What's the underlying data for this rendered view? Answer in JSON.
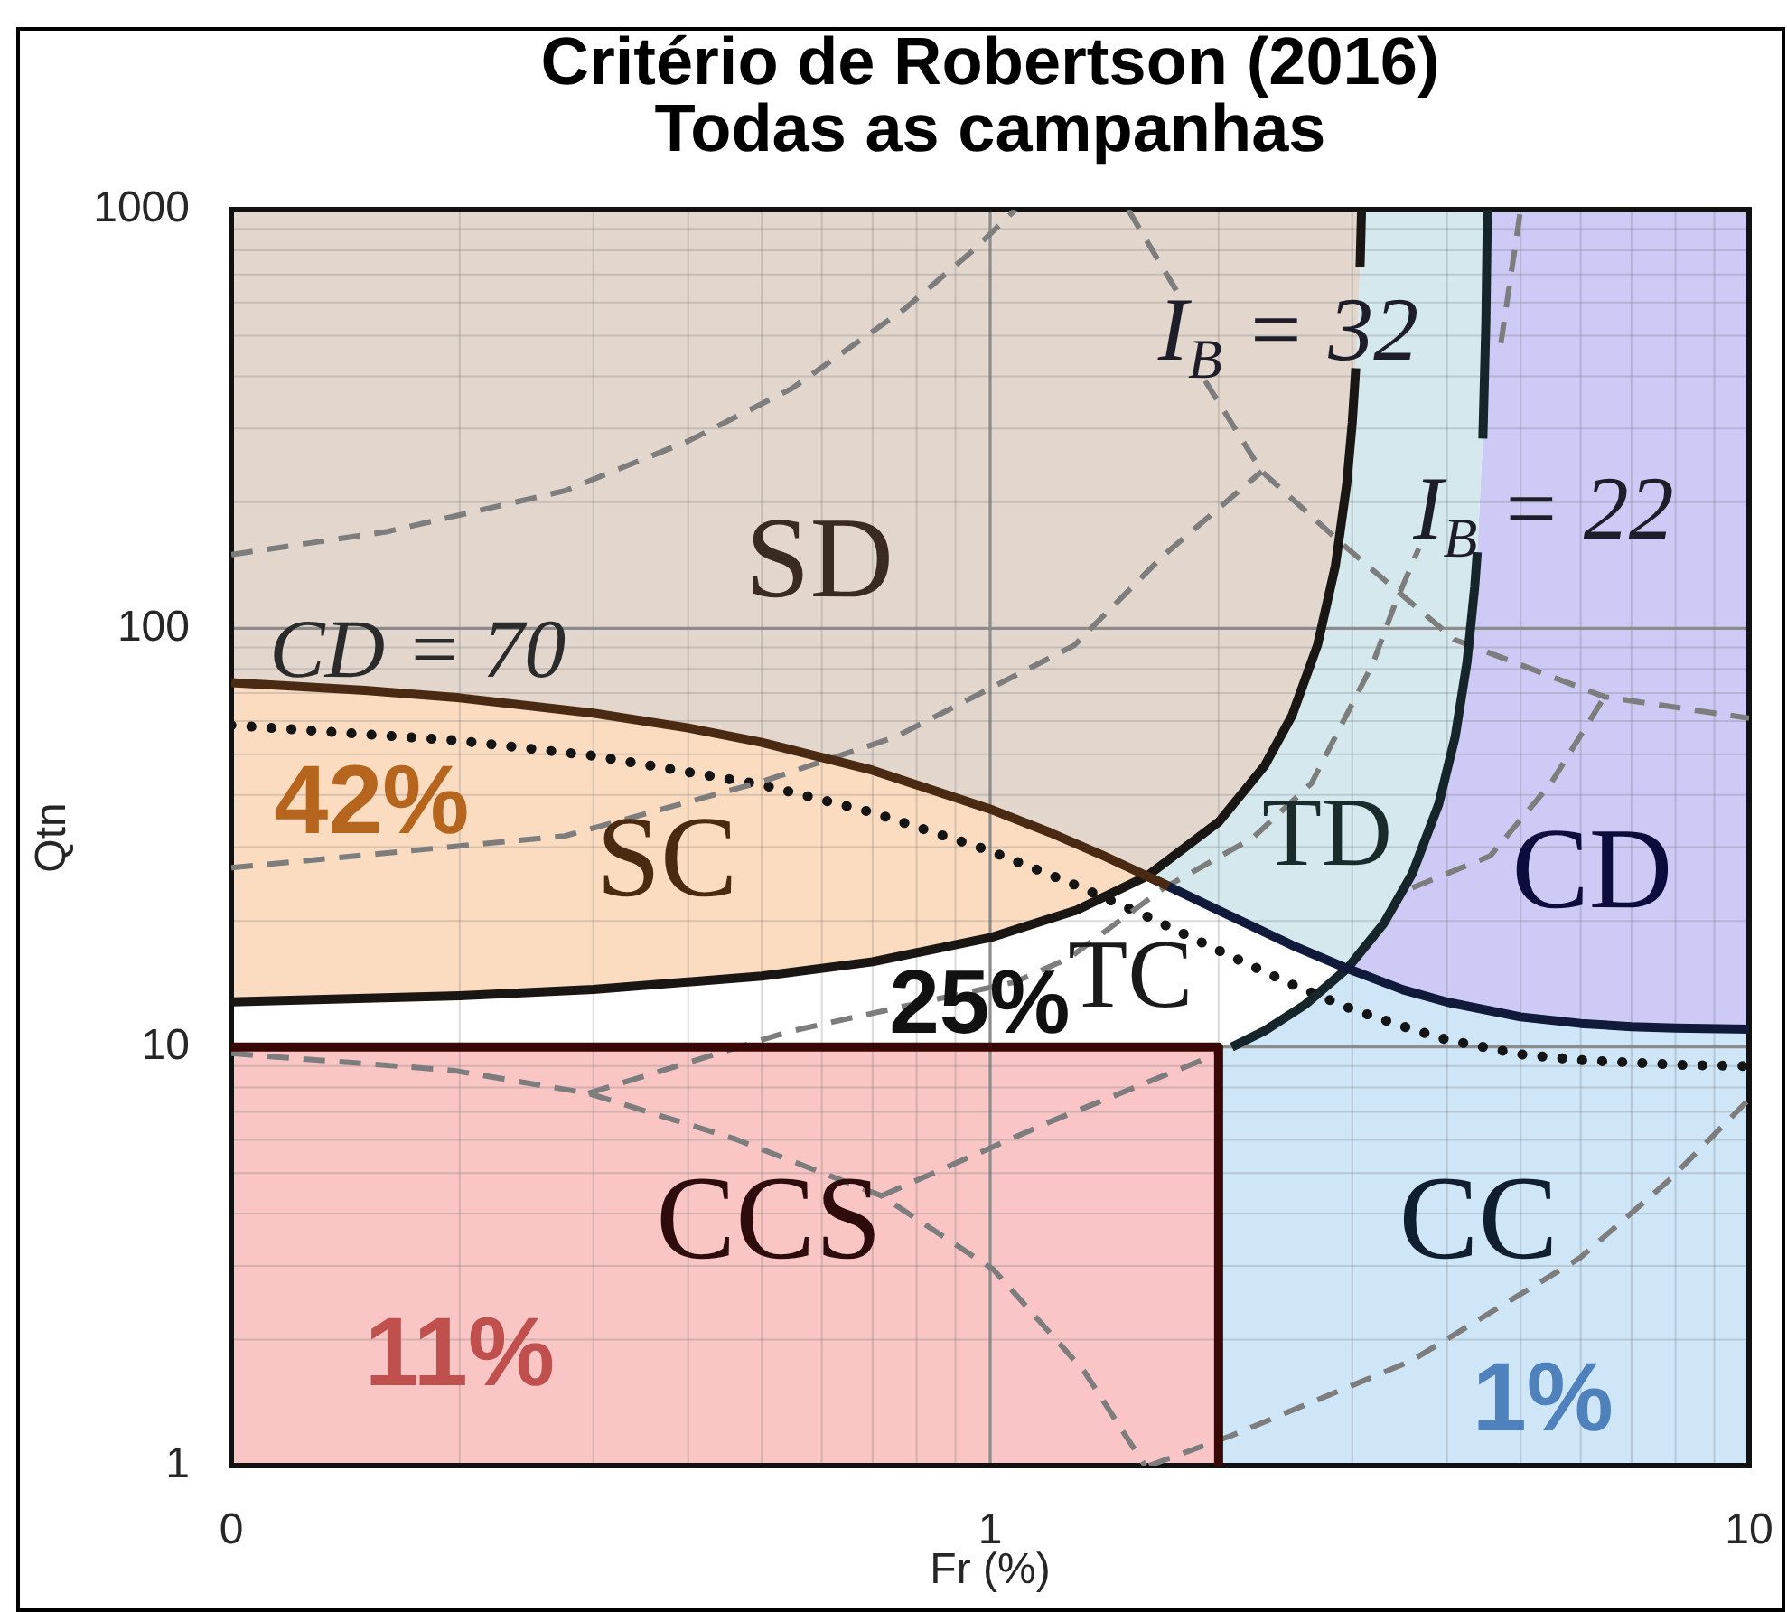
{
  "chart_data": {
    "type": "line",
    "title": "Critério de Robertson (2016)",
    "subtitle": "Todas as campanhas",
    "xlabel": "Fr (%)",
    "ylabel": "Qtn",
    "log": "xy",
    "xlim": [
      0.1,
      10
    ],
    "ylim": [
      1,
      1000
    ],
    "xticks": [
      {
        "value": 0.1,
        "label": "0"
      },
      {
        "value": 0.2,
        "label": null
      },
      {
        "value": 0.3,
        "label": null
      },
      {
        "value": 0.4,
        "label": null
      },
      {
        "value": 0.5,
        "label": null
      },
      {
        "value": 0.6,
        "label": null
      },
      {
        "value": 0.7,
        "label": null
      },
      {
        "value": 0.8,
        "label": null
      },
      {
        "value": 0.9,
        "label": null
      },
      1,
      {
        "value": 2,
        "label": null
      },
      {
        "value": 3,
        "label": null
      },
      {
        "value": 4,
        "label": null
      },
      {
        "value": 5,
        "label": null
      },
      {
        "value": 6,
        "label": null
      },
      {
        "value": 7,
        "label": null
      },
      {
        "value": 8,
        "label": null
      },
      {
        "value": 9,
        "label": null
      },
      10
    ],
    "yticks": [
      1,
      {
        "value": 2,
        "label": null
      },
      {
        "value": 3,
        "label": null
      },
      {
        "value": 4,
        "label": null
      },
      {
        "value": 5,
        "label": null
      },
      {
        "value": 6,
        "label": null
      },
      {
        "value": 7,
        "label": null
      },
      {
        "value": 8,
        "label": null
      },
      {
        "value": 9,
        "label": null
      },
      10,
      {
        "value": 20,
        "label": null
      },
      {
        "value": 30,
        "label": null
      },
      {
        "value": 40,
        "label": null
      },
      {
        "value": 50,
        "label": null
      },
      {
        "value": 60,
        "label": null
      },
      {
        "value": 70,
        "label": null
      },
      {
        "value": 80,
        "label": null
      },
      {
        "value": 90,
        "label": null
      },
      100,
      {
        "value": 200,
        "label": null
      },
      {
        "value": 300,
        "label": null
      },
      {
        "value": 400,
        "label": null
      },
      {
        "value": 500,
        "label": null
      },
      {
        "value": 600,
        "label": null
      },
      {
        "value": 700,
        "label": null
      },
      {
        "value": 800,
        "label": null
      },
      {
        "value": 900,
        "label": null
      },
      1000
    ],
    "grid": true,
    "series": [
      {
        "type": "area",
        "color": "#e3d7cd",
        "x": [
          0.1,
          3.086,
          3.0718,
          3.05,
          3.032,
          3.0,
          2.95,
          2.85,
          2.7,
          2.5,
          2.3,
          2.0,
          1.61,
          1.5,
          1.3,
          1.1,
          0.85,
          0.6,
          0.45,
          0.35,
          0.25,
          0.175,
          0.125,
          0.1
        ],
        "values": [
          1000,
          1000,
          728,
          516.7,
          418,
          310,
          221,
          140.9,
          91.2,
          62,
          46.97,
          34.44,
          25.6,
          27.2,
          30.5,
          34.6,
          41.1,
          49.4,
          55.5,
          60.2,
          65.3,
          69.6,
          72.7,
          74.2
        ]
      },
      {
        "type": "area",
        "color": "#fcdcc0",
        "x": [
          0.1,
          0.2,
          0.3,
          0.5,
          0.7,
          1.0,
          1.3,
          1.61,
          1.5,
          1.3,
          1.1,
          0.85,
          0.6,
          0.45,
          0.35,
          0.25,
          0.175,
          0.125,
          0.1
        ],
        "values": [
          12.81,
          13.25,
          13.72,
          14.76,
          15.98,
          18.24,
          21.23,
          25.6,
          27.2,
          30.5,
          34.6,
          41.1,
          49.4,
          55.5,
          60.2,
          65.3,
          69.6,
          72.7,
          74.2
        ]
      },
      {
        "type": "area",
        "color": "#d4e8ed",
        "x": [
          1.61,
          2.0,
          2.3,
          2.5,
          2.7,
          2.85,
          2.95,
          3.0,
          3.032,
          3.05,
          3.0718,
          3.086,
          4.521,
          4.5,
          4.459,
          4.384,
          4.35,
          4.25,
          4.1,
          3.9,
          3.6,
          3.3,
          2.955,
          2.5,
          2.0
        ],
        "values": [
          25.6,
          34.44,
          46.97,
          62,
          91.2,
          140.9,
          221,
          310,
          418,
          516.7,
          728,
          1000,
          1000,
          540,
          284,
          152,
          125.6,
          83.1,
          55.1,
          38.03,
          25.96,
          19.71,
          15.4,
          17.5,
          21.2
        ]
      },
      {
        "type": "area",
        "color": "#cdcaf6",
        "x": [
          2.955,
          3.3,
          3.6,
          3.9,
          4.1,
          4.25,
          4.35,
          4.384,
          4.459,
          4.5,
          4.521,
          10,
          10,
          8,
          7,
          6,
          5,
          4,
          3.5
        ],
        "values": [
          15.4,
          19.71,
          25.96,
          38.03,
          55.1,
          83.1,
          125.6,
          152,
          284,
          540,
          1000,
          1000,
          11.02,
          11.09,
          11.18,
          11.38,
          11.8,
          12.8,
          13.7
        ]
      },
      {
        "type": "area",
        "color": "#cfe6f8",
        "x": [
          2,
          2,
          2.082,
          2.3,
          2.6,
          2.955,
          3.5,
          4,
          5,
          6,
          7,
          8,
          10,
          10
        ],
        "values": [
          1,
          10,
          10,
          10.93,
          12.62,
          15.4,
          13.7,
          12.8,
          11.8,
          11.38,
          11.18,
          11.09,
          11.02,
          1
        ]
      },
      {
        "type": "area",
        "color": "#f9c5c5",
        "x": [
          0.1,
          0.1,
          1,
          1
        ],
        "values": [
          1,
          10,
          10,
          1
        ]
      },
      {
        "type": "area",
        "color": "#f9c5c6",
        "x": [
          1,
          1,
          2,
          2
        ],
        "values": [
          1,
          10,
          10,
          1
        ]
      },
      {
        "color": "#7d7d7d",
        "line_style": "dashed",
        "x": [
          0.1,
          0.16,
          0.275,
          0.4,
          0.548,
          0.771,
          0.95,
          1.08
        ],
        "values": [
          150,
          170,
          213,
          280,
          374,
          579,
          800,
          1000
        ]
      },
      {
        "color": "#7d7d7d",
        "line_style": "dashed",
        "x": [
          0.1,
          0.275,
          0.5,
          0.75,
          1.29,
          1.69,
          2.28
        ],
        "values": [
          26.8,
          31.9,
          43,
          55,
          91,
          149,
          237
        ]
      },
      {
        "color": "#7d7d7d",
        "line_style": "dashed",
        "x": [
          1.52,
          1.76,
          1.84,
          1.92,
          2.28,
          2.91,
          4.09,
          6.45,
          10
        ],
        "values": [
          1000,
          640,
          null,
          390,
          237,
          159,
          94,
          68.6,
          61
        ]
      },
      {
        "color": "#7d7d7d",
        "line_style": "dashed",
        "x": [
          3.6,
          4.56,
          5.48,
          6.45
        ],
        "values": [
          24,
          28.6,
          42.6,
          68.6
        ]
      },
      {
        "color": "#7d7d7d",
        "line_style": "dashed",
        "x": [
          0.2955,
          0.545,
          1.08,
          1.27,
          1.69,
          2.22,
          2.65,
          3.19,
          3.42,
          3.67,
          4.2,
          4.71,
          5.0
        ],
        "values": [
          7.75,
          10.9,
          14.3,
          16.3,
          23.9,
          31.6,
          42.6,
          82,
          115,
          155,
          null,
          480,
          1000
        ]
      },
      {
        "color": "#7d7d7d",
        "line_style": "dashed",
        "x": [
          0.1,
          0.196,
          0.2955,
          0.461,
          0.719,
          1.01,
          1.33,
          1.6
        ],
        "values": [
          9.65,
          8.79,
          7.75,
          6.03,
          4.41,
          2.94,
          1.68,
          1.0
        ]
      },
      {
        "color": "#7d7d7d",
        "line_style": "dashed",
        "x": [
          0.719,
          1.2,
          2.0
        ],
        "values": [
          4.41,
          6.63,
          9.65
        ]
      },
      {
        "color": "#7d7d7d",
        "line_style": "dashed",
        "x": [
          1.62,
          2.08,
          3.59,
          5.98,
          7.88,
          10
        ],
        "values": [
          1.0,
          1.18,
          1.78,
          3.13,
          4.84,
          7.5
        ]
      },
      {
        "color": "#141414",
        "line_style": "dotted",
        "x": [
          0.1,
          0.2,
          0.3,
          0.5,
          0.7,
          1.0,
          1.3,
          1.6,
          2.0,
          2.5,
          3.0,
          3.5,
          4,
          5,
          6,
          8,
          10
        ],
        "values": [
          58.7,
          53.9,
          49.6,
          42.3,
          36.3,
          29.4,
          24.3,
          20.6,
          17.0,
          14.1,
          12.3,
          11.2,
          10.4,
          9.6,
          9.3,
          9.07,
          9.0
        ]
      },
      {
        "color": "#4a2a12",
        "line_style": "solid",
        "x": [
          0.1,
          0.15,
          0.2,
          0.3,
          0.4,
          0.5,
          0.7,
          1.0,
          1.2,
          1.4,
          1.61,
          1.72
        ],
        "values": [
          74.2,
          71.1,
          68.2,
          62.7,
          57.8,
          53.4,
          45.8,
          37.0,
          32.5,
          28.8,
          25.6,
          24.2
        ]
      },
      {
        "color": "#111a3a",
        "line_style": "solid",
        "x": [
          1.61,
          2.0,
          2.5,
          2.955,
          3.5,
          4,
          5,
          6,
          7,
          8,
          10
        ],
        "values": [
          25.6,
          21.2,
          17.5,
          15.4,
          13.7,
          12.8,
          11.8,
          11.38,
          11.18,
          11.09,
          11.02
        ]
      },
      {
        "color": "#1a1614",
        "line_style": "solid",
        "x": [
          0.1,
          0.2,
          0.3,
          0.5,
          0.7,
          1.0,
          1.3,
          1.61,
          2.0,
          2.3,
          2.5,
          2.7,
          2.85,
          2.95,
          3.0,
          3.032,
          3.05,
          3.0718,
          3.086
        ],
        "values": [
          12.81,
          13.25,
          13.72,
          14.76,
          15.98,
          18.24,
          21.23,
          25.6,
          34.44,
          46.97,
          62,
          91.2,
          140.9,
          221,
          310,
          418,
          null,
          728,
          1000
        ]
      },
      {
        "color": "#15252a",
        "line_style": "solid",
        "x": [
          2.082,
          2.3,
          2.6,
          2.955,
          3.3,
          3.6,
          3.9,
          4.1,
          4.25,
          4.35,
          4.384,
          4.42,
          4.459,
          4.5,
          4.521
        ],
        "values": [
          10,
          10.93,
          12.62,
          15.4,
          19.71,
          25.96,
          38.03,
          55.1,
          83.1,
          125.6,
          152,
          null,
          284,
          540,
          1000
        ]
      },
      {
        "color": "#3a0707",
        "line_style": "solid",
        "x": [
          0.1,
          1,
          2,
          2
        ],
        "values": [
          10,
          10,
          10,
          1
        ]
      }
    ],
    "annotations": [
      "SD",
      "SC",
      "TC",
      "TD",
      "CD",
      "CCS",
      "CC",
      "42%",
      "25%",
      "11%",
      "1%",
      "CD = 70",
      "I$_{B}$ = 32",
      "I$_{B}$ = 22"
    ]
  }
}
